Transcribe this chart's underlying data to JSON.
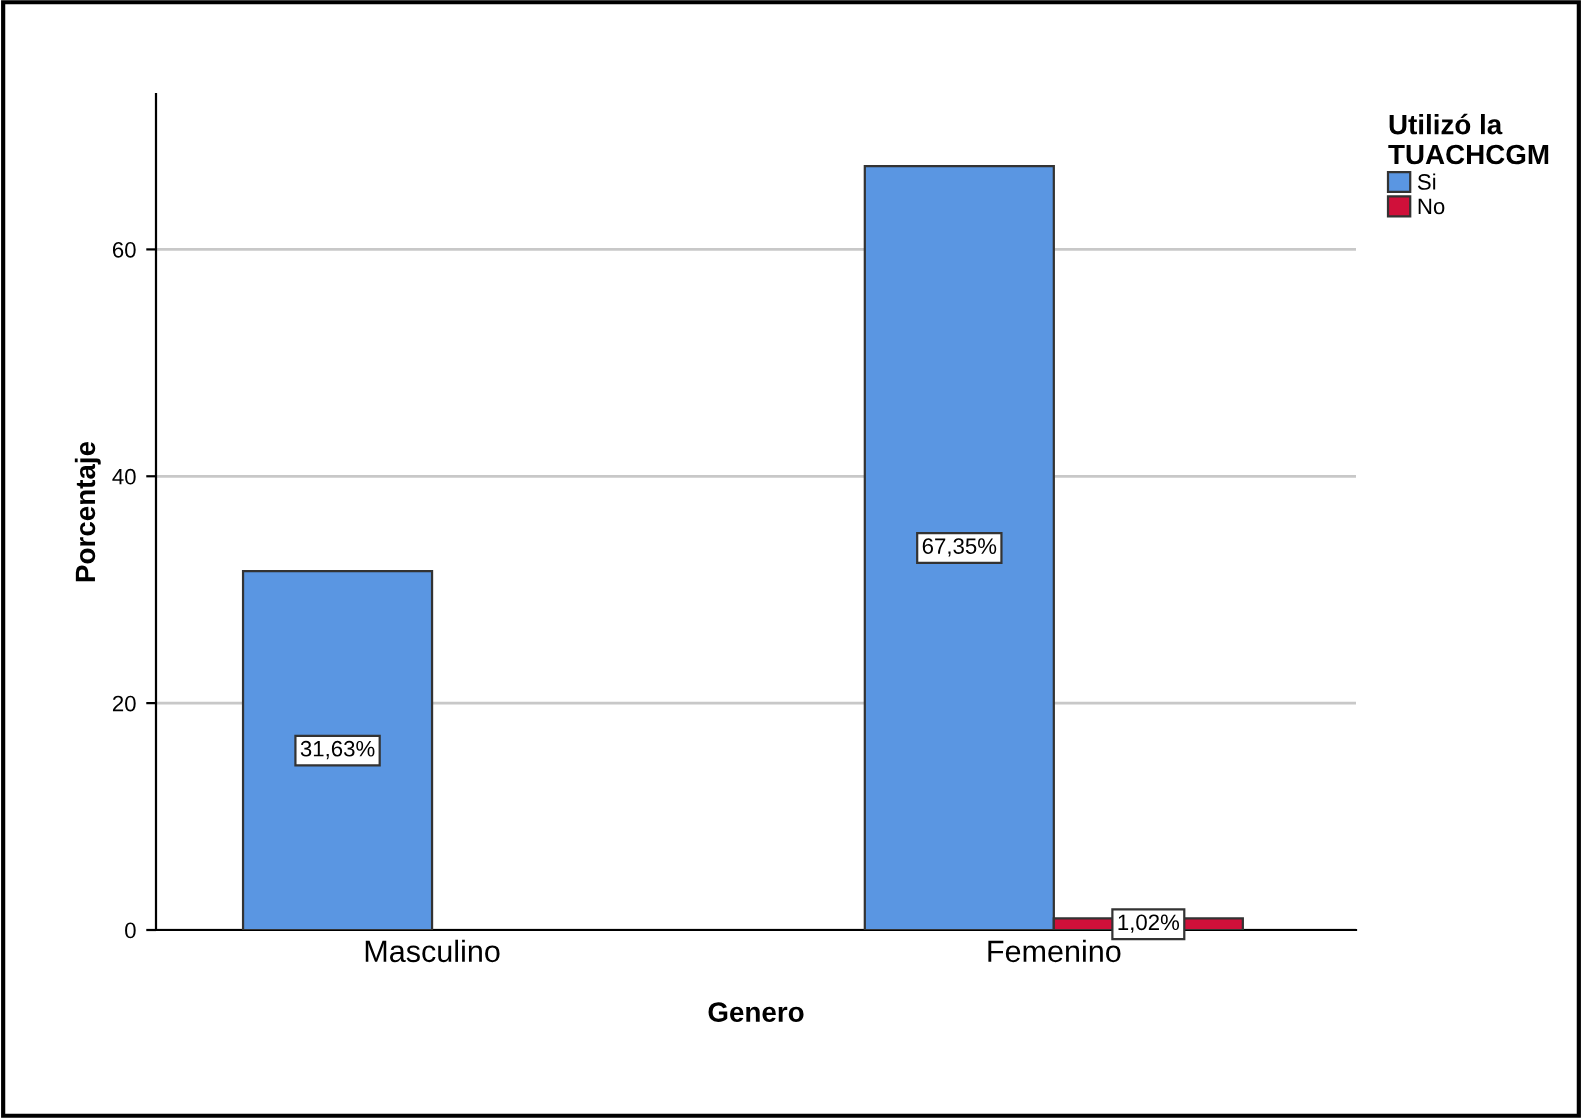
{
  "chart_data": {
    "type": "bar",
    "xlabel": "Genero",
    "ylabel": "Porcentaje",
    "legend_title": "Utilizó la\nTUACHCGM",
    "categories": [
      "Masculino",
      "Femenino"
    ],
    "series": [
      {
        "name": "Si",
        "color": "#5a96e2",
        "values": [
          31.63,
          67.35
        ],
        "value_labels": [
          "31,63%",
          "67,35%"
        ]
      },
      {
        "name": "No",
        "color": "#d0103a",
        "values": [
          null,
          1.02
        ],
        "value_labels": [
          null,
          "1,02%"
        ]
      }
    ],
    "ylim": [
      0,
      73.7
    ],
    "yticks": [
      0,
      20,
      40,
      60
    ],
    "grid": "y",
    "legend": "top right"
  }
}
